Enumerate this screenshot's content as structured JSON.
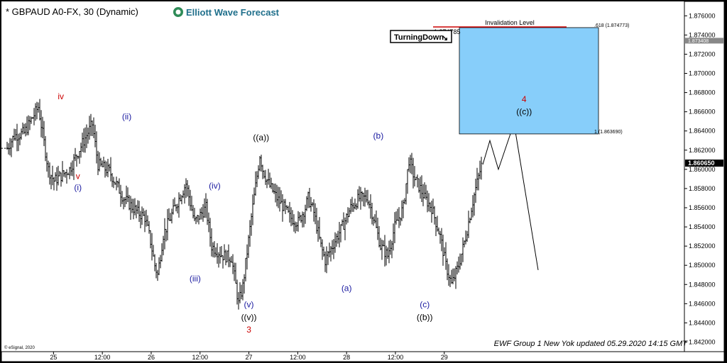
{
  "header": {
    "title": "* GBPAUD A0-FX, 30 (Dynamic)",
    "brand": "Elliott Wave Forecast",
    "copyright": "© eSignal, 2020"
  },
  "box": {
    "label": "Invalidation Level",
    "top_price": 1.87477,
    "bottom_price": 1.86369,
    "left_price_label": "1.874785",
    "fib_top": ".618 (1.874773)",
    "fib_bottom": "1 (1.863690)",
    "color": "#87CEFA"
  },
  "turning_down": "TurningDown",
  "footer": "EWF Group 1 New Yok updated 05.29.2020 14:15 GMT",
  "chart_data": {
    "type": "ohlc",
    "symbol": "GBPAUD",
    "timeframe": "30",
    "ylim": [
      1.841,
      1.8775
    ],
    "yticks": [
      "1.876000",
      "1.874000",
      "1.872000",
      "1.870000",
      "1.868000",
      "1.866000",
      "1.864000",
      "1.862000",
      "1.860000",
      "1.858000",
      "1.856000",
      "1.854000",
      "1.852000",
      "1.850000",
      "1.848000",
      "1.846000",
      "1.844000",
      "1.842000"
    ],
    "ytick_values": [
      1.876,
      1.874,
      1.872,
      1.87,
      1.868,
      1.866,
      1.864,
      1.862,
      1.86,
      1.858,
      1.856,
      1.854,
      1.852,
      1.85,
      1.848,
      1.846,
      1.844,
      1.842
    ],
    "last_price": "1.860650",
    "last_price_value": 1.86065,
    "secondary_price": "1.873408",
    "secondary_price_value": 1.873408,
    "xticks": [
      "25",
      "12:00",
      "26",
      "12:00",
      "27",
      "12:00",
      "28",
      "12:00",
      "29"
    ],
    "xtick_index": [
      19,
      39,
      59,
      79,
      99,
      119,
      139,
      159,
      179
    ],
    "n_bars": 202,
    "anchors": [
      [
        0,
        1.8622
      ],
      [
        5,
        1.8635
      ],
      [
        12,
        1.8638
      ],
      [
        22,
        1.8665
      ],
      [
        29,
        1.86
      ],
      [
        33,
        1.8588
      ],
      [
        44,
        1.86
      ],
      [
        54,
        1.863
      ],
      [
        60,
        1.8647
      ],
      [
        64,
        1.8605
      ],
      [
        72,
        1.8598
      ],
      [
        82,
        1.857
      ],
      [
        92,
        1.8555
      ],
      [
        97,
        1.855
      ],
      [
        101,
        1.8525
      ],
      [
        104,
        1.85
      ],
      [
        106,
        1.849
      ],
      [
        110,
        1.8532
      ],
      [
        118,
        1.856
      ],
      [
        126,
        1.8585
      ],
      [
        132,
        1.8545
      ],
      [
        140,
        1.856
      ],
      [
        144,
        1.852
      ],
      [
        152,
        1.851
      ],
      [
        158,
        1.8508
      ],
      [
        163,
        1.846
      ],
      [
        166,
        1.8478
      ],
      [
        172,
        1.855
      ],
      [
        178,
        1.8615
      ],
      [
        180,
        1.86
      ],
      [
        184,
        1.8585
      ],
      [
        190,
        1.857
      ],
      [
        196,
        1.8558
      ],
      [
        199,
        1.855
      ],
      [
        205,
        1.8545
      ],
      [
        210,
        1.856
      ],
      [
        212,
        1.857
      ],
      [
        216,
        1.8555
      ],
      [
        221,
        1.852
      ],
      [
        224,
        1.8505
      ],
      [
        229,
        1.852
      ],
      [
        236,
        1.854
      ],
      [
        242,
        1.856
      ],
      [
        248,
        1.857
      ],
      [
        254,
        1.857
      ],
      [
        258,
        1.855
      ],
      [
        263,
        1.852
      ],
      [
        268,
        1.851
      ],
      [
        273,
        1.854
      ],
      [
        279,
        1.856
      ],
      [
        283,
        1.861
      ],
      [
        287,
        1.859
      ],
      [
        291,
        1.858
      ],
      [
        294,
        1.857
      ],
      [
        299,
        1.856
      ],
      [
        305,
        1.853
      ],
      [
        309,
        1.85
      ],
      [
        313,
        1.848
      ],
      [
        318,
        1.85
      ],
      [
        323,
        1.853
      ],
      [
        327,
        1.856
      ],
      [
        330,
        1.858
      ],
      [
        335,
        1.861
      ]
    ],
    "projection": [
      [
        1.8605
      ],
      [
        1.863
      ],
      [
        1.86
      ],
      [
        1.8648
      ],
      [
        1.8495
      ]
    ],
    "waves": [
      {
        "label": "iv",
        "price": 1.8673,
        "bar": 22,
        "color": "#cc0000",
        "pos": "above"
      },
      {
        "label": "v",
        "price": 1.859,
        "bar": 29,
        "color": "#cc0000",
        "pos": "below"
      },
      {
        "label": "(i)",
        "price": 1.8578,
        "bar": 29,
        "color": "#1a1aa0",
        "pos": "below"
      },
      {
        "label": "(ii)",
        "price": 1.8652,
        "bar": 49,
        "color": "#1a1aa0",
        "pos": "above"
      },
      {
        "label": "(iii)",
        "price": 1.8483,
        "bar": 77,
        "color": "#1a1aa0",
        "pos": "below"
      },
      {
        "label": "(iv)",
        "price": 1.858,
        "bar": 85,
        "color": "#1a1aa0",
        "pos": "above"
      },
      {
        "label": "(v)",
        "price": 1.8456,
        "bar": 99,
        "color": "#1a1aa0",
        "pos": "below"
      },
      {
        "label": "((v))",
        "price": 1.8443,
        "bar": 99,
        "color": "#000000",
        "pos": "below"
      },
      {
        "label": "3",
        "price": 1.843,
        "bar": 99,
        "color": "#cc0000",
        "pos": "below"
      },
      {
        "label": "((a))",
        "price": 1.863,
        "bar": 104,
        "color": "#000000",
        "pos": "above"
      },
      {
        "label": "(a)",
        "price": 1.8473,
        "bar": 139,
        "color": "#1a1aa0",
        "pos": "below"
      },
      {
        "label": "(b)",
        "price": 1.8632,
        "bar": 152,
        "color": "#1a1aa0",
        "pos": "above"
      },
      {
        "label": "(c)",
        "price": 1.8456,
        "bar": 171,
        "color": "#1a1aa0",
        "pos": "below"
      },
      {
        "label": "((b))",
        "price": 1.8443,
        "bar": 171,
        "color": "#000000",
        "pos": "below"
      },
      {
        "label": "4",
        "price": 1.867,
        "bar": 187,
        "color": "#cc0000",
        "pos": "above"
      },
      {
        "label": "((c))",
        "price": 1.8657,
        "bar": 187,
        "color": "#000000",
        "pos": "above"
      }
    ]
  }
}
